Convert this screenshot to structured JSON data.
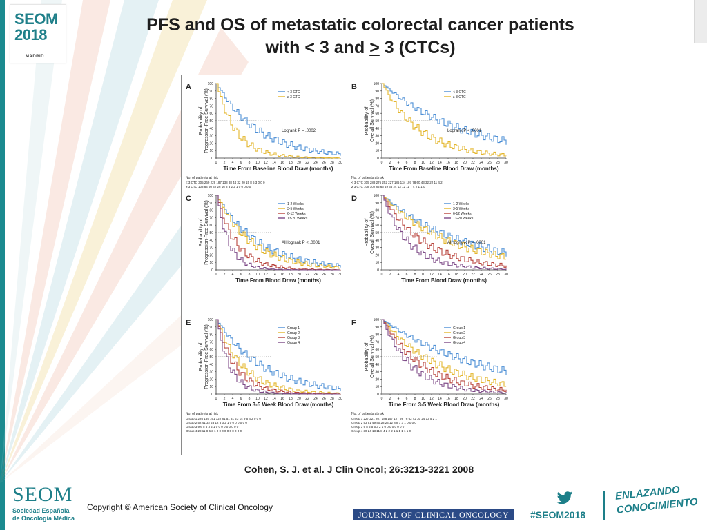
{
  "header": {
    "logo": {
      "line1": "SEOM",
      "line2": "2018",
      "city": "MADRID"
    },
    "title_line1": "PFS and OS of metastatic colorectal cancer patients",
    "title_line2_pre": "with < 3 and ",
    "title_line2_ul": ">",
    "title_line2_post": " 3 (CTCs)"
  },
  "figure": {
    "panels": [
      {
        "letter": "A",
        "ylabel1": "Probability of",
        "ylabel2": "Progression-Free Survival (%)",
        "xlabel": "Time From Baseline Blood Draw (months)",
        "annotation": "Logrank P = .0002",
        "legend": [
          "< 3 CTC",
          "≥ 3 CTC"
        ],
        "risk_title": "No. of patients at risk",
        "risk_rows": [
          "< 3 CTC  305 269 229 187 138 88 44 32 20 15 8 6 3 0 0 0",
          "≥ 3 CTC  108 84 60 42 26 16 8 3 2 2 1 0 0 0 0 0"
        ]
      },
      {
        "letter": "B",
        "ylabel1": "Probability of",
        "ylabel2": "Overall Survival (%)",
        "xlabel": "Time From Baseline Blood Draw (months)",
        "annotation": "Logrank P < .0001",
        "legend": [
          "< 3 CTC",
          "≥ 3 CTC"
        ],
        "risk_title": "No. of patients at risk",
        "risk_rows": [
          "< 3 CTC  305 288 276 252 227 186 134 107 78 60 43 32 22 11 4 2",
          "≥ 3 CTC  108 102 86 66 49 36 24 13 12 11 7 4 2 1 1 0"
        ]
      },
      {
        "letter": "C",
        "ylabel1": "Probability of",
        "ylabel2": "Progression-Free Survival (%)",
        "xlabel": "Time From Blood Draw (months)",
        "annotation": "All logrank P < .0001",
        "legend": [
          "1-2 Weeks",
          "3-5 Weeks",
          "6-12 Weeks",
          "13-20 Weeks"
        ],
        "risk_title": "",
        "risk_rows": []
      },
      {
        "letter": "D",
        "ylabel1": "Probability of",
        "ylabel2": "Overall Survival (%)",
        "xlabel": "Time From Blood Draw (months)",
        "annotation": "All logrank P < .0001",
        "legend": [
          "1-2 Weeks",
          "3-5 Weeks",
          "6-12 Weeks",
          "13-20 Weeks"
        ],
        "risk_title": "",
        "risk_rows": []
      },
      {
        "letter": "E",
        "ylabel1": "Probability of",
        "ylabel2": "Progression-Free Survival (%)",
        "xlabel": "Time From 3-5 Week Blood Draw (months)",
        "annotation": "",
        "legend": [
          "Group 1",
          "Group 2",
          "Group 3",
          "Group 4"
        ],
        "risk_title": "No. of patients at risk",
        "risk_rows": [
          "Group 1  226 189 161 122 81 51 31 23 14 9 6 4 2 0 0 0",
          "Group 2  52 41 32 23 12 8 3 2 1 0 0 0 0 0 0 0",
          "Group 3  9 6 5 5 3 2 1 0 0 0 0 0 0 0 0 0",
          "Group 4  28 11 8 6 3 1 0 0 0 0 0 0 0 0 0 0"
        ]
      },
      {
        "letter": "F",
        "ylabel1": "Probability of",
        "ylabel2": "Overall Survival (%)",
        "xlabel": "Time From 3-5 Week Blood Draw (months)",
        "annotation": "",
        "legend": [
          "Group 1",
          "Group 2",
          "Group 3",
          "Group 4"
        ],
        "risk_title": "No. of patients at risk",
        "risk_rows": [
          "Group 1  227 221 207 188 157 127 98 76 62 42 30 24 13 5 2 1",
          "Group 2  53 51 49 40 28 24 12 8 8 7 3 1 0 0 0 0",
          "Group 3  9 8 6 5 5 3 2 1 0 0 0 0 0 0 0 0",
          "Group 4  30 24 13 11 8 4 2 2 2 1 1 1 1 1 1 0"
        ]
      }
    ],
    "colors": {
      "blue": "#4d8fd6",
      "yellow": "#e3b62c",
      "red": "#b8443c",
      "purple": "#7d4a87",
      "gray": "#555555"
    }
  },
  "citation": "Cohen, S. J. et al. J Clin Oncol; 26:3213-3221 2008",
  "footer": {
    "seom_big": "SEOM",
    "seom_sub1": "Sociedad Española",
    "seom_sub2": "de Oncología Médica",
    "copyright": "Copyright © American Society of Clinical Oncology",
    "journal": "JOURNAL OF CLINICAL ONCOLOGY",
    "hashtag": "#SEOM2018",
    "slogan1": "ENLAZANDO",
    "slogan2": "CONOCIMIENTO",
    "icon": "twitter-bird-icon"
  }
}
